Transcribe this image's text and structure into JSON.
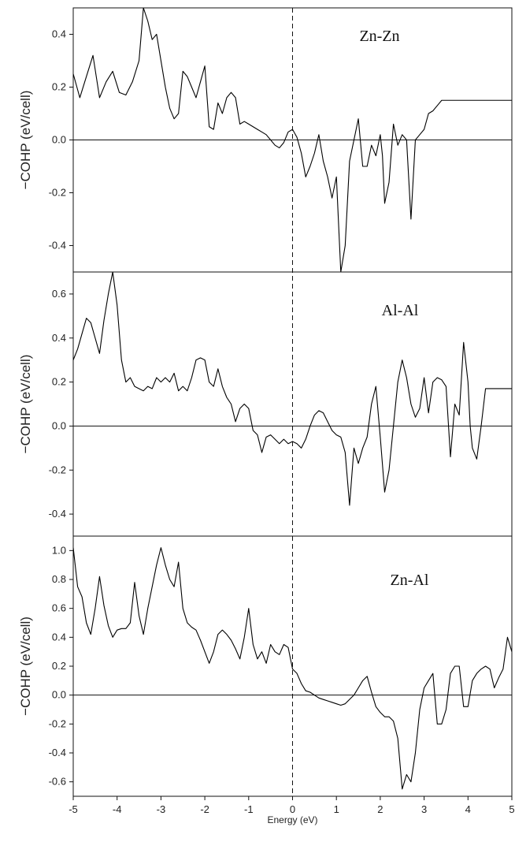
{
  "chart_data": [
    {
      "type": "line",
      "title": "Zn-Zn",
      "xlabel": "",
      "ylabel": "−COHP (eV/cell)",
      "xlim": [
        -5,
        5
      ],
      "ylim": [
        -0.5,
        0.5
      ],
      "yticks": [
        "0.4",
        "0.2",
        "0.0",
        "-0.2",
        "-0.4"
      ],
      "yticks_values": [
        0.4,
        0.2,
        0.0,
        -0.2,
        -0.4
      ],
      "series": [
        {
          "x": [
            -5.0,
            -4.85,
            -4.7,
            -4.55,
            -4.4,
            -4.25,
            -4.1,
            -3.95,
            -3.8,
            -3.65,
            -3.5,
            -3.4,
            -3.3,
            -3.2,
            -3.1,
            -3.0,
            -2.9,
            -2.8,
            -2.7,
            -2.6,
            -2.5,
            -2.4,
            -2.3,
            -2.2,
            -2.1,
            -2.0,
            -1.9,
            -1.8,
            -1.7,
            -1.6,
            -1.5,
            -1.4,
            -1.3,
            -1.2,
            -1.1,
            -1.0,
            -0.9,
            -0.8,
            -0.7,
            -0.6,
            -0.5,
            -0.4,
            -0.3,
            -0.2,
            -0.1,
            0.0,
            0.1,
            0.2,
            0.3,
            0.4,
            0.5,
            0.6,
            0.7,
            0.8,
            0.9,
            1.0,
            1.1,
            1.2,
            1.3,
            1.4,
            1.5,
            1.6,
            1.7,
            1.8,
            1.9,
            2.0,
            2.05,
            2.1,
            2.2,
            2.3,
            2.4,
            2.5,
            2.6,
            2.7,
            2.8,
            2.9,
            3.0,
            3.1,
            3.2,
            3.3,
            3.4,
            3.5,
            3.6,
            3.7,
            3.8,
            3.9,
            4.0,
            4.05,
            4.1,
            4.2,
            4.3,
            4.4,
            4.5,
            4.6,
            4.7,
            4.8,
            4.9,
            5.0
          ],
          "y": [
            0.25,
            0.16,
            0.24,
            0.32,
            0.16,
            0.22,
            0.26,
            0.18,
            0.17,
            0.22,
            0.3,
            0.5,
            0.45,
            0.38,
            0.4,
            0.3,
            0.2,
            0.12,
            0.08,
            0.1,
            0.26,
            0.24,
            0.2,
            0.16,
            0.22,
            0.28,
            0.05,
            0.04,
            0.14,
            0.1,
            0.16,
            0.18,
            0.16,
            0.06,
            0.07,
            0.06,
            0.05,
            0.04,
            0.03,
            0.02,
            0.0,
            -0.02,
            -0.03,
            -0.01,
            0.03,
            0.04,
            0.01,
            -0.05,
            -0.14,
            -0.1,
            -0.05,
            0.02,
            -0.08,
            -0.14,
            -0.22,
            -0.14,
            -0.5,
            -0.4,
            -0.08,
            0.0,
            0.08,
            -0.1,
            -0.1,
            -0.02,
            -0.06,
            0.02,
            -0.06,
            -0.24,
            -0.16,
            0.06,
            -0.02,
            0.02,
            0.0,
            -0.3,
            0.0,
            0.02,
            0.04,
            0.1,
            0.11,
            0.13,
            0.15,
            0.15,
            0.15,
            0.15,
            0.15,
            0.15,
            0.15,
            0.15,
            0.15,
            0.15,
            0.15,
            0.15,
            0.15,
            0.15,
            0.15,
            0.15,
            0.15,
            0.15
          ]
        }
      ]
    },
    {
      "type": "line",
      "title": "Al-Al",
      "xlabel": "",
      "ylabel": "−COHP (eV/cell)",
      "xlim": [
        -5,
        5
      ],
      "ylim": [
        -0.5,
        0.7
      ],
      "yticks": [
        "0.6",
        "0.4",
        "0.2",
        "0.0",
        "-0.2",
        "-0.4"
      ],
      "yticks_values": [
        0.6,
        0.4,
        0.2,
        0.0,
        -0.2,
        -0.4
      ],
      "series": [
        {
          "x": [
            -5.0,
            -4.9,
            -4.8,
            -4.7,
            -4.6,
            -4.5,
            -4.4,
            -4.3,
            -4.2,
            -4.1,
            -4.0,
            -3.9,
            -3.8,
            -3.7,
            -3.6,
            -3.5,
            -3.4,
            -3.3,
            -3.2,
            -3.1,
            -3.0,
            -2.9,
            -2.8,
            -2.7,
            -2.6,
            -2.5,
            -2.4,
            -2.3,
            -2.2,
            -2.1,
            -2.0,
            -1.9,
            -1.8,
            -1.7,
            -1.6,
            -1.5,
            -1.4,
            -1.3,
            -1.2,
            -1.1,
            -1.0,
            -0.9,
            -0.8,
            -0.7,
            -0.6,
            -0.5,
            -0.4,
            -0.3,
            -0.2,
            -0.1,
            0.0,
            0.1,
            0.2,
            0.3,
            0.4,
            0.5,
            0.6,
            0.7,
            0.8,
            0.9,
            1.0,
            1.1,
            1.2,
            1.3,
            1.4,
            1.5,
            1.6,
            1.7,
            1.8,
            1.9,
            2.0,
            2.1,
            2.2,
            2.3,
            2.4,
            2.5,
            2.6,
            2.7,
            2.8,
            2.9,
            3.0,
            3.1,
            3.2,
            3.3,
            3.4,
            3.5,
            3.6,
            3.7,
            3.8,
            3.9,
            4.0,
            4.05,
            4.1,
            4.2,
            4.3,
            4.4,
            4.5,
            4.6,
            4.7,
            4.8,
            4.9,
            5.0
          ],
          "y": [
            0.3,
            0.35,
            0.42,
            0.49,
            0.47,
            0.4,
            0.33,
            0.48,
            0.6,
            0.7,
            0.55,
            0.3,
            0.2,
            0.22,
            0.18,
            0.17,
            0.16,
            0.18,
            0.17,
            0.22,
            0.2,
            0.22,
            0.2,
            0.24,
            0.16,
            0.18,
            0.16,
            0.22,
            0.3,
            0.31,
            0.3,
            0.2,
            0.18,
            0.26,
            0.18,
            0.13,
            0.1,
            0.02,
            0.08,
            0.1,
            0.08,
            -0.02,
            -0.04,
            -0.12,
            -0.05,
            -0.04,
            -0.06,
            -0.08,
            -0.06,
            -0.08,
            -0.07,
            -0.08,
            -0.1,
            -0.06,
            0.0,
            0.05,
            0.07,
            0.06,
            0.02,
            -0.02,
            -0.04,
            -0.05,
            -0.12,
            -0.36,
            -0.1,
            -0.17,
            -0.1,
            -0.05,
            0.1,
            0.18,
            -0.05,
            -0.3,
            -0.2,
            0.0,
            0.2,
            0.3,
            0.22,
            0.1,
            0.04,
            0.08,
            0.22,
            0.06,
            0.2,
            0.22,
            0.21,
            0.18,
            -0.14,
            0.1,
            0.05,
            0.38,
            0.2,
            0.0,
            -0.1,
            -0.15,
            0.0,
            0.17,
            0.17,
            0.17,
            0.17,
            0.17,
            0.17,
            0.17
          ]
        }
      ]
    },
    {
      "type": "line",
      "title": "Zn-Al",
      "xlabel": "Energy (eV)",
      "ylabel": "−COHP (eV/cell)",
      "xlim": [
        -5,
        5
      ],
      "ylim": [
        -0.7,
        1.1
      ],
      "xticks": [
        "-5",
        "-4",
        "-3",
        "-2",
        "-1",
        "0",
        "1",
        "2",
        "3",
        "4",
        "5"
      ],
      "xticks_values": [
        -5,
        -4,
        -3,
        -2,
        -1,
        0,
        1,
        2,
        3,
        4,
        5
      ],
      "yticks": [
        "1.0",
        "0.8",
        "0.6",
        "0.4",
        "0.2",
        "0.0",
        "-0.2",
        "-0.4",
        "-0.6"
      ],
      "yticks_values": [
        1.0,
        0.8,
        0.6,
        0.4,
        0.2,
        0.0,
        -0.2,
        -0.4,
        -0.6
      ],
      "series": [
        {
          "x": [
            -5.0,
            -4.9,
            -4.8,
            -4.7,
            -4.6,
            -4.5,
            -4.4,
            -4.3,
            -4.2,
            -4.1,
            -4.0,
            -3.9,
            -3.8,
            -3.7,
            -3.6,
            -3.5,
            -3.4,
            -3.3,
            -3.2,
            -3.1,
            -3.0,
            -2.9,
            -2.8,
            -2.7,
            -2.6,
            -2.5,
            -2.4,
            -2.3,
            -2.2,
            -2.1,
            -2.0,
            -1.9,
            -1.8,
            -1.7,
            -1.6,
            -1.5,
            -1.4,
            -1.3,
            -1.2,
            -1.1,
            -1.0,
            -0.9,
            -0.8,
            -0.7,
            -0.6,
            -0.5,
            -0.4,
            -0.3,
            -0.2,
            -0.1,
            0.0,
            0.1,
            0.2,
            0.3,
            0.4,
            0.5,
            0.6,
            0.7,
            0.8,
            0.9,
            1.0,
            1.1,
            1.2,
            1.3,
            1.4,
            1.5,
            1.6,
            1.7,
            1.8,
            1.9,
            2.0,
            2.1,
            2.2,
            2.3,
            2.4,
            2.5,
            2.6,
            2.7,
            2.8,
            2.9,
            3.0,
            3.1,
            3.2,
            3.3,
            3.4,
            3.5,
            3.6,
            3.7,
            3.8,
            3.9,
            4.0,
            4.1,
            4.2,
            4.3,
            4.4,
            4.5,
            4.6,
            4.7,
            4.8,
            4.9,
            5.0
          ],
          "y": [
            1.02,
            0.75,
            0.68,
            0.5,
            0.42,
            0.6,
            0.82,
            0.62,
            0.48,
            0.4,
            0.45,
            0.46,
            0.46,
            0.5,
            0.78,
            0.55,
            0.42,
            0.6,
            0.75,
            0.9,
            1.02,
            0.9,
            0.8,
            0.75,
            0.92,
            0.6,
            0.5,
            0.47,
            0.45,
            0.38,
            0.3,
            0.22,
            0.3,
            0.42,
            0.45,
            0.42,
            0.38,
            0.32,
            0.25,
            0.4,
            0.6,
            0.35,
            0.25,
            0.3,
            0.22,
            0.35,
            0.3,
            0.28,
            0.35,
            0.33,
            0.18,
            0.15,
            0.08,
            0.03,
            0.02,
            0.0,
            -0.02,
            -0.03,
            -0.04,
            -0.05,
            -0.06,
            -0.07,
            -0.06,
            -0.03,
            0.0,
            0.05,
            0.1,
            0.13,
            0.02,
            -0.08,
            -0.12,
            -0.15,
            -0.15,
            -0.18,
            -0.3,
            -0.65,
            -0.55,
            -0.6,
            -0.4,
            -0.1,
            0.05,
            0.1,
            0.15,
            -0.2,
            -0.2,
            -0.1,
            0.15,
            0.2,
            0.2,
            -0.08,
            -0.08,
            0.1,
            0.15,
            0.18,
            0.2,
            0.18,
            0.05,
            0.12,
            0.18,
            0.4,
            0.3
          ]
        }
      ]
    }
  ]
}
